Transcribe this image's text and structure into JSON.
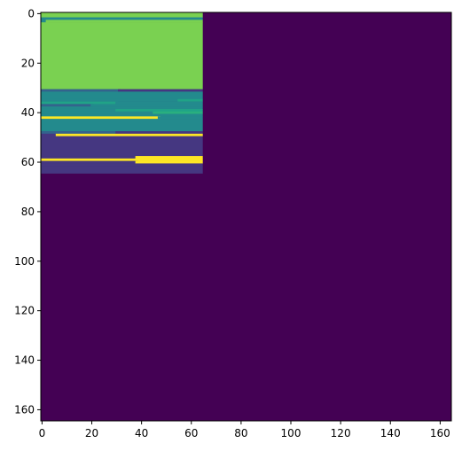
{
  "chart_data": {
    "type": "heatmap",
    "colormap": "viridis",
    "grid": false,
    "xlim": [
      -0.5,
      164.5
    ],
    "ylim": [
      164.5,
      -0.5
    ],
    "x_ticks": [
      0,
      20,
      40,
      60,
      80,
      100,
      120,
      140,
      160
    ],
    "y_ticks": [
      0,
      20,
      40,
      60,
      80,
      100,
      120,
      140,
      160
    ],
    "x_tick_labels": [
      "0",
      "20",
      "40",
      "60",
      "80",
      "100",
      "120",
      "140",
      "160"
    ],
    "y_tick_labels": [
      "0",
      "20",
      "40",
      "60",
      "80",
      "100",
      "120",
      "140",
      "160"
    ],
    "background_value": 0,
    "colors": {
      "level_0": "#440154",
      "level_1": "#453781",
      "level_2": "#33638d",
      "level_3": "#238a8d",
      "level_4": "#20a387",
      "level_5": "#29af7f",
      "level_6": "#7ad151",
      "level_7": "#fde725"
    },
    "segments": [
      {
        "row": 0,
        "x_start": 0,
        "x_end": 64,
        "value": 6
      },
      {
        "row": 1,
        "x_start": 0,
        "x_end": 64,
        "value": 6
      },
      {
        "row": 2,
        "x_start": 0,
        "x_end": 64,
        "value": 3
      },
      {
        "row": 3,
        "x_start": 0,
        "x_end": 2,
        "value": 3
      },
      {
        "row": 3,
        "x_start": 2,
        "x_end": 64,
        "value": 6
      },
      {
        "rows": [
          4,
          30
        ],
        "x_start": 0,
        "x_end": 64,
        "value": 6
      },
      {
        "row": 31,
        "x_start": 0,
        "x_end": 31,
        "value": 2
      },
      {
        "row": 31,
        "x_start": 31,
        "x_end": 64,
        "value": 1
      },
      {
        "rows": [
          32,
          34
        ],
        "x_start": 0,
        "x_end": 64,
        "value": 3
      },
      {
        "row": 35,
        "x_start": 0,
        "x_end": 55,
        "value": 3
      },
      {
        "row": 35,
        "x_start": 55,
        "x_end": 64,
        "value": 4
      },
      {
        "row": 36,
        "x_start": 0,
        "x_end": 30,
        "value": 4
      },
      {
        "row": 36,
        "x_start": 30,
        "x_end": 64,
        "value": 3
      },
      {
        "row": 37,
        "x_start": 0,
        "x_end": 20,
        "value": 2
      },
      {
        "row": 37,
        "x_start": 20,
        "x_end": 64,
        "value": 3
      },
      {
        "row": 38,
        "x_start": 0,
        "x_end": 64,
        "value": 3
      },
      {
        "row": 39,
        "x_start": 0,
        "x_end": 30,
        "value": 3
      },
      {
        "row": 39,
        "x_start": 30,
        "x_end": 64,
        "value": 4
      },
      {
        "row": 40,
        "x_start": 0,
        "x_end": 45,
        "value": 3
      },
      {
        "row": 40,
        "x_start": 45,
        "x_end": 64,
        "value": 5
      },
      {
        "row": 41,
        "x_start": 0,
        "x_end": 64,
        "value": 3
      },
      {
        "row": 42,
        "x_start": 0,
        "x_end": 47,
        "value": 7
      },
      {
        "row": 42,
        "x_start": 47,
        "x_end": 64,
        "value": 3
      },
      {
        "rows": [
          43,
          47
        ],
        "x_start": 0,
        "x_end": 64,
        "value": 3
      },
      {
        "row": 48,
        "x_start": 0,
        "x_end": 30,
        "value": 2
      },
      {
        "row": 48,
        "x_start": 30,
        "x_end": 64,
        "value": 1
      },
      {
        "row": 49,
        "x_start": 0,
        "x_end": 6,
        "value": 1
      },
      {
        "row": 49,
        "x_start": 6,
        "x_end": 64,
        "value": 7
      },
      {
        "rows": [
          50,
          57
        ],
        "x_start": 0,
        "x_end": 64,
        "value": 1
      },
      {
        "row": 58,
        "x_start": 0,
        "x_end": 38,
        "value": 1
      },
      {
        "row": 58,
        "x_start": 38,
        "x_end": 64,
        "value": 7
      },
      {
        "row": 59,
        "x_start": 0,
        "x_end": 64,
        "value": 7
      },
      {
        "row": 60,
        "x_start": 0,
        "x_end": 38,
        "value": 1
      },
      {
        "row": 60,
        "x_start": 38,
        "x_end": 64,
        "value": 7
      },
      {
        "row": 61,
        "x_start": 0,
        "x_end": 64,
        "value": 1
      },
      {
        "rows": [
          62,
          64
        ],
        "x_start": 0,
        "x_end": 64,
        "value": 1
      }
    ]
  }
}
